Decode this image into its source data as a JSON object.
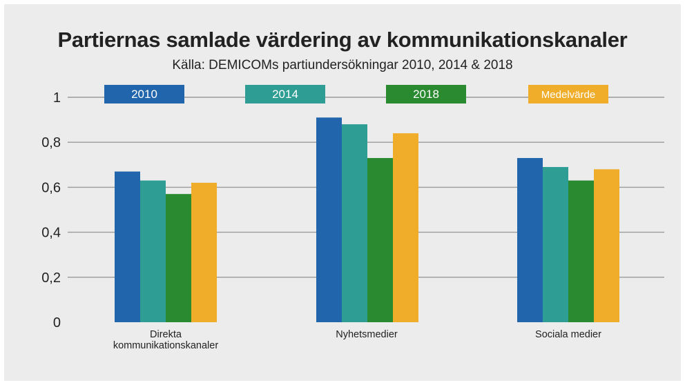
{
  "chart_data": {
    "type": "bar",
    "title": "Partiernas samlade värdering av kommunikationskanaler",
    "subtitle": "Källa: DEMICOMs partiundersökningar 2010, 2014 & 2018",
    "categories": [
      "Direkta\nkommunikationskanaler",
      "Nyhetsmedier",
      "Sociala medier"
    ],
    "series": [
      {
        "name": "2010",
        "color": "#2166ac",
        "values": [
          0.67,
          0.91,
          0.73
        ]
      },
      {
        "name": "2014",
        "color": "#2e9e95",
        "values": [
          0.63,
          0.88,
          0.69
        ]
      },
      {
        "name": "2018",
        "color": "#2a8a2f",
        "values": [
          0.57,
          0.73,
          0.63
        ]
      },
      {
        "name": "Medelvärde",
        "color": "#f0ad2a",
        "values": [
          0.62,
          0.84,
          0.68
        ]
      }
    ],
    "yticks": [
      "0",
      "0,2",
      "0,4",
      "0,6",
      "0,8",
      "1"
    ],
    "ylim": [
      0,
      1
    ],
    "grid": true,
    "legend": "top"
  }
}
